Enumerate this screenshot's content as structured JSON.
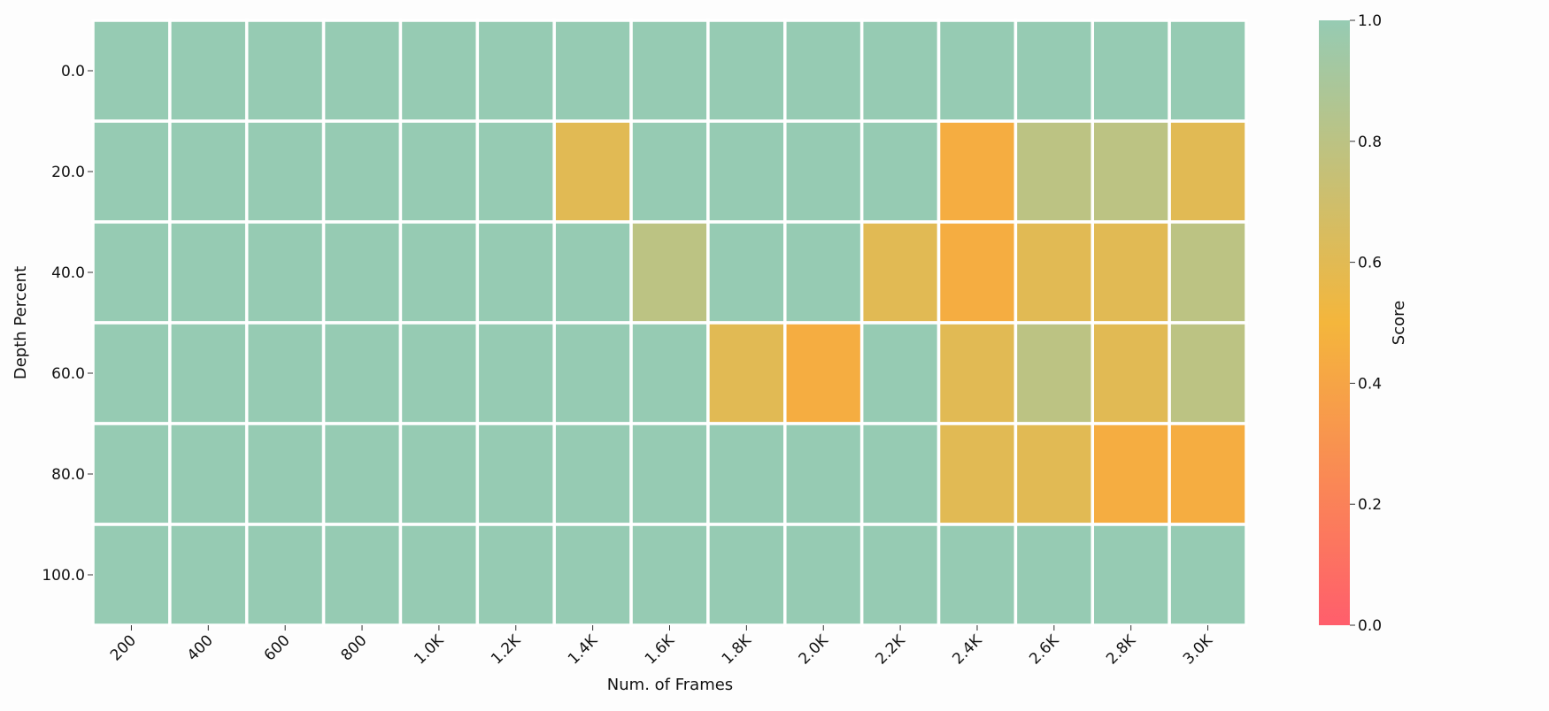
{
  "chart_data": {
    "type": "heatmap",
    "xlabel": "Num. of Frames",
    "ylabel": "Depth Percent",
    "x_categories": [
      "200",
      "400",
      "600",
      "800",
      "1.0K",
      "1.2K",
      "1.4K",
      "1.6K",
      "1.8K",
      "2.0K",
      "2.2K",
      "2.4K",
      "2.6K",
      "2.8K",
      "3.0K"
    ],
    "y_categories": [
      "0.0",
      "20.0",
      "40.0",
      "60.0",
      "80.0",
      "100.0"
    ],
    "values": [
      [
        1,
        1,
        1,
        1,
        1,
        1,
        1,
        1,
        1,
        1,
        1,
        1,
        1,
        1,
        1
      ],
      [
        1,
        1,
        1,
        1,
        1,
        1,
        0.6,
        1,
        1,
        1,
        1,
        0.45,
        0.8,
        0.8,
        0.6
      ],
      [
        1,
        1,
        1,
        1,
        1,
        1,
        1,
        0.8,
        1,
        1,
        0.6,
        0.45,
        0.6,
        0.6,
        0.8
      ],
      [
        1,
        1,
        1,
        1,
        1,
        1,
        1,
        1,
        0.6,
        0.45,
        1,
        0.6,
        0.8,
        0.6,
        0.8
      ],
      [
        1,
        1,
        1,
        1,
        1,
        1,
        1,
        1,
        1,
        1,
        1,
        0.6,
        0.6,
        0.45,
        0.45
      ],
      [
        1,
        1,
        1,
        1,
        1,
        1,
        1,
        1,
        1,
        1,
        1,
        1,
        1,
        1,
        1
      ]
    ],
    "colorbar": {
      "label": "Score",
      "range": [
        0,
        1
      ],
      "ticks": [
        "0.0",
        "0.2",
        "0.4",
        "0.6",
        "0.8",
        "1.0"
      ],
      "colors": [
        "#ff5e6c",
        "#f4b63c",
        "#96cbb3"
      ]
    },
    "grid": false
  }
}
